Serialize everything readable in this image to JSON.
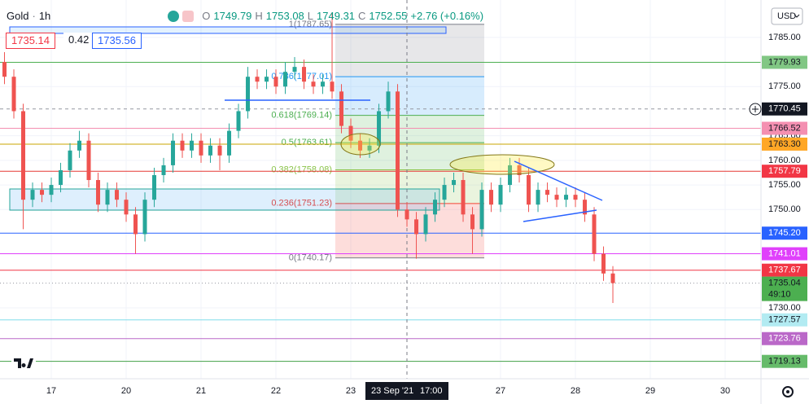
{
  "header": {
    "symbol": "Gold",
    "interval": "1h",
    "o_label": "O",
    "open": "1749.79",
    "h_label": "H",
    "high": "1753.08",
    "l_label": "L",
    "low": "1749.31",
    "c_label": "C",
    "close": "1752.55",
    "change": "+2.76 (+0.16%)"
  },
  "quote": {
    "bid": "1735.14",
    "spread": "0.42",
    "ask": "1735.56"
  },
  "currency": "USD",
  "crosshair": {
    "date": "23 Sep '21",
    "time": "17:00"
  },
  "chart_data": {
    "type": "candlestick",
    "up_color": "#26a69a",
    "down_color": "#ef5350",
    "grid": true,
    "x": [
      -0.625,
      -0.5,
      -0.375,
      -0.25,
      -0.125,
      0,
      0.125,
      0.25,
      0.375,
      0.5,
      0.625,
      0.75,
      0.875,
      1,
      1.125,
      1.25,
      1.375,
      1.5,
      1.625,
      1.75,
      1.875,
      2,
      2.125,
      2.25,
      2.375,
      2.5,
      2.625,
      2.75,
      2.875,
      3,
      3.125,
      3.25,
      3.375,
      3.5,
      3.625,
      3.75,
      3.875,
      4,
      4.125,
      4.25,
      4.375,
      4.5,
      4.625,
      4.75,
      4.875,
      5,
      5.125,
      5.25,
      5.375,
      5.5,
      5.625,
      5.75,
      5.875,
      6,
      6.125,
      6.25,
      6.375,
      6.5,
      6.625,
      6.75,
      6.875,
      7,
      7.125,
      7.25,
      7.375,
      7.5
    ],
    "open": [
      1780,
      1777,
      1770,
      1752,
      1754,
      1753,
      1755,
      1758,
      1762,
      1764,
      1756,
      1751,
      1754,
      1752,
      1749,
      1745,
      1752,
      1757,
      1759,
      1764,
      1762,
      1764,
      1761,
      1763,
      1761,
      1766,
      1770,
      1777,
      1776,
      1777,
      1775,
      1778,
      1779,
      1776,
      1775,
      1776,
      1774,
      1767,
      1764,
      1762,
      1763,
      1770,
      1774,
      1750,
      1748,
      1745,
      1749,
      1752,
      1755,
      1756,
      1749,
      1746,
      1754,
      1751,
      1755,
      1759,
      1757,
      1751,
      1754,
      1753,
      1752,
      1753,
      1752,
      1749,
      1741,
      1737
    ],
    "high": [
      1782,
      1778.5,
      1771.5,
      1755.5,
      1755.5,
      1756.5,
      1759.5,
      1763.5,
      1766,
      1765.5,
      1757.5,
      1755.5,
      1755.5,
      1753.5,
      1750.5,
      1753.5,
      1758.5,
      1760.5,
      1765.5,
      1765.5,
      1765.5,
      1765.5,
      1764.5,
      1764.5,
      1767.5,
      1771.5,
      1779,
      1778.5,
      1778.5,
      1778.5,
      1780,
      1781,
      1780.5,
      1777.5,
      1777.5,
      1790,
      1775.5,
      1768.5,
      1765.5,
      1764.5,
      1771.5,
      1776,
      1775.5,
      1751.5,
      1749.5,
      1750.5,
      1753.5,
      1756.5,
      1757.5,
      1757.5,
      1750.5,
      1755.5,
      1755.5,
      1756.5,
      1760.5,
      1760.5,
      1758.5,
      1755.5,
      1755.5,
      1754.5,
      1754.5,
      1754.5,
      1753.5,
      1750.5,
      1742.5,
      1738.5
    ],
    "low": [
      1775.5,
      1768.5,
      1746,
      1750.5,
      1751.5,
      1751.5,
      1753.5,
      1756.5,
      1760.5,
      1754.5,
      1749.5,
      1749.5,
      1750.5,
      1747.5,
      1741,
      1743.5,
      1750.5,
      1755.5,
      1757.5,
      1760.5,
      1760.5,
      1759.5,
      1759.5,
      1758,
      1759.5,
      1764.5,
      1768.5,
      1774.5,
      1774.5,
      1773.5,
      1773.5,
      1776.5,
      1774.5,
      1773.5,
      1773.5,
      1772.5,
      1765.5,
      1762.5,
      1760.5,
      1760.5,
      1761.5,
      1768.5,
      1748.5,
      1746.5,
      1740,
      1743.5,
      1747.5,
      1750.5,
      1753.5,
      1747.5,
      1741,
      1744.5,
      1749.5,
      1749.5,
      1753.5,
      1755.5,
      1749.5,
      1749.5,
      1751.5,
      1750.5,
      1750.5,
      1750.5,
      1747.5,
      1739.5,
      1735.5,
      1731
    ],
    "close": [
      1777,
      1770,
      1752,
      1754,
      1753,
      1755,
      1758,
      1762,
      1764,
      1756,
      1751,
      1754,
      1752,
      1749,
      1745,
      1752,
      1757,
      1759,
      1764,
      1762,
      1764,
      1761,
      1763,
      1761,
      1766,
      1770,
      1777,
      1776,
      1777,
      1775,
      1778,
      1779,
      1776,
      1775,
      1776,
      1774,
      1767,
      1764,
      1762,
      1763,
      1770,
      1774,
      1750,
      1748,
      1745,
      1749,
      1752,
      1755,
      1756,
      1749,
      1746,
      1754,
      1751,
      1755,
      1759,
      1757,
      1751,
      1754,
      1753,
      1752,
      1753,
      1752,
      1749,
      1741,
      1737,
      1735.04
    ],
    "xlim": [
      -0.685,
      9.478
    ],
    "xticks": [
      {
        "value": 0,
        "label": "17"
      },
      {
        "value": 1,
        "label": "20"
      },
      {
        "value": 2,
        "label": "21"
      },
      {
        "value": 3,
        "label": "22"
      },
      {
        "value": 4,
        "label": "23"
      },
      {
        "value": 6,
        "label": "27"
      },
      {
        "value": 7,
        "label": "28"
      },
      {
        "value": 8,
        "label": "29"
      },
      {
        "value": 9,
        "label": "30"
      }
    ],
    "ylim": [
      1715.6,
      1792.6
    ],
    "yticks": [
      {
        "value": 1730,
        "label": "1730.00"
      },
      {
        "value": 1750,
        "label": "1750.00"
      },
      {
        "value": 1755,
        "label": "1755.00"
      },
      {
        "value": 1760,
        "label": "1760.00"
      },
      {
        "value": 1765,
        "label": "1765.00"
      },
      {
        "value": 1775,
        "label": "1775.00"
      },
      {
        "value": 1785,
        "label": "1785.00"
      }
    ],
    "price_lines": [
      {
        "price": 1779.93,
        "label": "1779.93",
        "color": "#4caf50",
        "label_color": "#81c784",
        "text_color": "#131722",
        "style": "solid"
      },
      {
        "price": 1770.45,
        "label": "1770.45",
        "color": "#9598a1",
        "label_color": "#131722",
        "text_color": "#ffffff",
        "style": "dashed"
      },
      {
        "price": 1766.52,
        "label": "1766.52",
        "color": "#f48fb1",
        "label_color": "#f48fb1",
        "text_color": "#131722",
        "style": "solid"
      },
      {
        "price": 1763.3,
        "label": "1763.30",
        "color": "#c9a400",
        "label_color": "#ffa726",
        "text_color": "#131722",
        "style": "solid"
      },
      {
        "price": 1757.79,
        "label": "1757.79",
        "color": "#e53935",
        "label_color": "#f23645",
        "text_color": "#ffffff",
        "style": "solid"
      },
      {
        "price": 1745.2,
        "label": "1745.20",
        "color": "#2962ff",
        "label_color": "#2962ff",
        "text_color": "#ffffff",
        "style": "solid"
      },
      {
        "price": 1741.01,
        "label": "1741.01",
        "color": "#e040fb",
        "label_color": "#e040fb",
        "text_color": "#ffffff",
        "style": "solid"
      },
      {
        "price": 1737.67,
        "label": "1737.67",
        "color": "#f23645",
        "label_color": "#f23645",
        "text_color": "#ffffff",
        "style": "solid"
      },
      {
        "price": 1735.04,
        "label": "1735.04",
        "countdown": "49:10",
        "color": "#9598a1",
        "label_color": "#4caf50",
        "text_color": "#131722",
        "style": "dotted"
      },
      {
        "price": 1727.57,
        "label": "1727.57",
        "color": "#80deea",
        "label_color": "#b2ebf2",
        "text_color": "#131722",
        "style": "solid"
      },
      {
        "price": 1723.76,
        "label": "1723.76",
        "color": "#ba68c8",
        "label_color": "#ba68c8",
        "text_color": "#ffffff",
        "style": "solid"
      },
      {
        "price": 1719.13,
        "label": "1719.13",
        "color": "#43a047",
        "label_color": "#66bb6a",
        "text_color": "#131722",
        "style": "solid"
      }
    ],
    "fib_levels": [
      {
        "label": "1(1787.65)",
        "price": 1787.65,
        "color": "#787b86"
      },
      {
        "label": "0.786(1777.01)",
        "price": 1777.01,
        "color": "#2196f3"
      },
      {
        "label": "0.618(1769.14)",
        "price": 1769.14,
        "color": "#4caf50"
      },
      {
        "label": "0.5(1763.61)",
        "price": 1763.61,
        "color": "#4caf50"
      },
      {
        "label": "0.382(1758.08)",
        "price": 1758.08,
        "color": "#8bc34a"
      },
      {
        "label": "0.236(1751.23)",
        "price": 1751.23,
        "color": "#f44336"
      },
      {
        "label": "0(1740.17)",
        "price": 1740.17,
        "color": "#787b86"
      }
    ]
  }
}
